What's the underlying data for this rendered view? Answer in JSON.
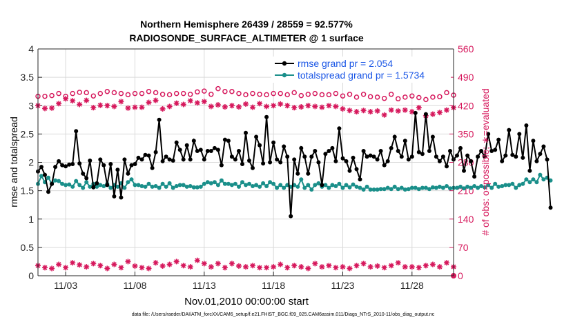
{
  "chart_data": {
    "type": "line",
    "title": "Northern Hemisphere 26439 / 28559 = 92.577%",
    "subtitle": "RADIOSONDE_SURFACE_ALTIMETER @ 1 surface",
    "xlabel": "Nov.01,2010 00:00:00 start",
    "ylabel": "rmse and totalspread",
    "y2label": "# of obs: o=possible; ∗=evaluated",
    "footnote": "data file: /Users/raeder/DAI/ATM_forcXX/CAM6_setup/f.e21.FHIST_BGC.f09_025.CAM6assim.011/Diags_NTrS_2010-11/obs_diag_output.nc",
    "xlim": [
      1,
      31
    ],
    "x_ticks": [
      3,
      8,
      13,
      18,
      23,
      28
    ],
    "x_tick_labels": [
      "11/03",
      "11/08",
      "11/13",
      "11/18",
      "11/23",
      "11/28"
    ],
    "ylim": [
      0,
      4
    ],
    "y_ticks": [
      "0",
      "0.5",
      "1",
      "1.5",
      "2",
      "2.5",
      "3",
      "3.5",
      "4"
    ],
    "y2lim": [
      0,
      560
    ],
    "y2_ticks": [
      "0",
      "70",
      "140",
      "210",
      "280",
      "350",
      "420",
      "490",
      "560"
    ],
    "grid": true,
    "legend_position": "top-right",
    "colors": {
      "rmse": "#000000",
      "totalspread": "#1a8f8a",
      "obs": "#d6185c"
    },
    "series": [
      {
        "name": "rmse grand pr = 2.054",
        "color": "#000000",
        "x_start": 1,
        "x_step": 0.25,
        "values": [
          1.84,
          1.92,
          1.78,
          1.48,
          1.62,
          1.92,
          2.02,
          1.95,
          1.93,
          1.96,
          1.97,
          2.55,
          1.98,
          1.8,
          1.72,
          2.03,
          1.56,
          1.63,
          2.05,
          1.95,
          1.6,
          1.97,
          1.4,
          1.87,
          1.38,
          2.05,
          1.8,
          1.95,
          1.97,
          2.08,
          2.05,
          2.13,
          2.12,
          1.9,
          2.18,
          2.75,
          2.02,
          2.1,
          2.05,
          2.03,
          2.35,
          2.22,
          2.05,
          2.3,
          2.05,
          2.38,
          2.2,
          2.22,
          2.05,
          2.2,
          2.2,
          2.25,
          2.22,
          1.95,
          2.4,
          2.38,
          2.1,
          2.05,
          2.2,
          1.97,
          2.52,
          2.03,
          1.9,
          2.45,
          2.3,
          1.98,
          2.8,
          2.0,
          2.35,
          2.05,
          2.0,
          2.28,
          2.1,
          1.05,
          2.05,
          1.8,
          2.25,
          2.1,
          1.8,
          2.1,
          2.2,
          2.0,
          1.6,
          2.15,
          2.2,
          2.25,
          2.02,
          2.6,
          2.07,
          2.02,
          1.85,
          2.08,
          1.88,
          1.7,
          2.2,
          2.1,
          2.12,
          2.1,
          2.05,
          2.2,
          1.95,
          2.02,
          2.25,
          2.45,
          2.2,
          2.1,
          2.38,
          2.05,
          2.1,
          2.87,
          2.18,
          2.15,
          2.85,
          2.2,
          2.45,
          2.1,
          2.02,
          2.1,
          1.93,
          2.2,
          2.05,
          2.12,
          2.25,
          1.85,
          2.12,
          2.02,
          1.75,
          2.1,
          2.2,
          2.1,
          2.5,
          2.2,
          2.22,
          2.4,
          2.02,
          2.12,
          2.57,
          2.13,
          2.1,
          2.5,
          2.08,
          2.65,
          1.85,
          2.38,
          2.02,
          2.15,
          2.28,
          2.05,
          1.2
        ]
      },
      {
        "name": "totalspread grand pr = 1.5734",
        "color": "#1a8f8a",
        "x_start": 1,
        "x_step": 0.25,
        "values": [
          1.62,
          1.76,
          1.65,
          1.73,
          1.62,
          1.68,
          1.67,
          1.62,
          1.6,
          1.61,
          1.57,
          1.67,
          1.6,
          1.55,
          1.65,
          1.57,
          1.62,
          1.57,
          1.6,
          1.58,
          1.62,
          1.55,
          1.6,
          1.57,
          1.63,
          1.55,
          1.65,
          1.7,
          1.6,
          1.6,
          1.58,
          1.57,
          1.62,
          1.57,
          1.58,
          1.55,
          1.62,
          1.57,
          1.63,
          1.55,
          1.58,
          1.6,
          1.6,
          1.57,
          1.58,
          1.56,
          1.56,
          1.57,
          1.62,
          1.65,
          1.63,
          1.65,
          1.6,
          1.68,
          1.62,
          1.62,
          1.6,
          1.62,
          1.57,
          1.65,
          1.6,
          1.62,
          1.58,
          1.6,
          1.57,
          1.63,
          1.58,
          1.65,
          1.62,
          1.55,
          1.6,
          1.55,
          1.6,
          1.57,
          1.6,
          1.57,
          1.7,
          1.55,
          1.6,
          1.52,
          1.6,
          1.63,
          1.57,
          1.6,
          1.55,
          1.6,
          1.58,
          1.62,
          1.55,
          1.6,
          1.56,
          1.61,
          1.57,
          1.55,
          1.52,
          1.57,
          1.52,
          1.52,
          1.52,
          1.53,
          1.53,
          1.55,
          1.53,
          1.57,
          1.53,
          1.55,
          1.52,
          1.53,
          1.55,
          1.55,
          1.53,
          1.55,
          1.55,
          1.53,
          1.56,
          1.55,
          1.57,
          1.55,
          1.58,
          1.54,
          1.55,
          1.55,
          1.57,
          1.54,
          1.57,
          1.55,
          1.58,
          1.55,
          1.58,
          1.56,
          1.6,
          1.55,
          1.62,
          1.57,
          1.58,
          1.6,
          1.6,
          1.62,
          1.55,
          1.6,
          1.62,
          1.7,
          1.65,
          1.7,
          1.65,
          1.78,
          1.7,
          1.73,
          1.68
        ]
      },
      {
        "name": "possible obs",
        "axis": "right",
        "color": "#d6185c",
        "marker": "circle",
        "x_start": 1,
        "x_step": 0.5,
        "values": [
          443,
          443,
          445,
          450,
          443,
          450,
          453,
          452,
          444,
          450,
          455,
          452,
          450,
          447,
          450,
          450,
          455,
          452,
          448,
          447,
          450,
          450,
          448,
          454,
          456,
          448,
          462,
          455,
          455,
          450,
          447,
          450,
          448,
          447,
          450,
          450,
          447,
          452,
          445,
          448,
          450,
          447,
          447,
          450,
          444,
          448,
          441,
          448,
          442,
          441,
          438,
          448,
          437,
          441,
          444,
          440,
          435,
          441,
          442,
          452,
          446
        ]
      },
      {
        "name": "evaluated obs",
        "axis": "right",
        "color": "#d6185c",
        "marker": "asterisk",
        "x_start": 1,
        "x_step": 0.5,
        "values": [
          420,
          413,
          414,
          425,
          437,
          432,
          423,
          433,
          415,
          421,
          420,
          418,
          430,
          414,
          416,
          416,
          428,
          433,
          412,
          418,
          426,
          423,
          432,
          427,
          430,
          418,
          422,
          417,
          420,
          417,
          424,
          416,
          425,
          418,
          420,
          424,
          420,
          415,
          417,
          420,
          418,
          416,
          420,
          418,
          412,
          408,
          405,
          408,
          405,
          407,
          397,
          409,
          407,
          409,
          405,
          415,
          395,
          399,
          403,
          409,
          415
        ]
      },
      {
        "name": "possible obs (bottom)",
        "axis": "right",
        "color": "#d6185c",
        "marker": "circle",
        "x_start": 1,
        "x_step": 0.5,
        "values": [
          0
        ]
      },
      {
        "name": "evaluated obs (bottom)",
        "axis": "right",
        "color": "#d6185c",
        "marker": "asterisk",
        "x_start": 1,
        "x_step": 0.5,
        "values": [
          25,
          20,
          18,
          28,
          20,
          32,
          27,
          22,
          30,
          25,
          18,
          28,
          20,
          35,
          24,
          20,
          18,
          32,
          24,
          28,
          35,
          25,
          22,
          38,
          30,
          22,
          30,
          20,
          30,
          24,
          22,
          25,
          20,
          20,
          22,
          28,
          20,
          25,
          22,
          18,
          30,
          22,
          25,
          20,
          22,
          18,
          25,
          30,
          22,
          24,
          20,
          25,
          32,
          22,
          22,
          20,
          25,
          28,
          22,
          32,
          22
        ]
      }
    ]
  }
}
